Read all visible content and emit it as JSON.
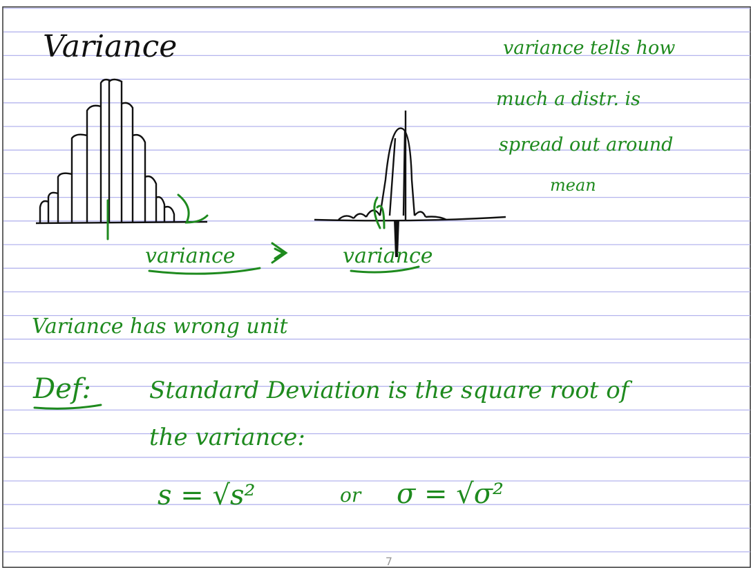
{
  "page": {
    "title": "Variance",
    "side_note": [
      "variance tells how",
      "much a distr. is",
      "spread out around",
      "mean"
    ],
    "sketch_labels": [
      "variance",
      "variance"
    ],
    "statement": "Variance has wrong unit",
    "definition": {
      "label": "Def:",
      "lines": [
        "Standard Deviation is the square root of",
        "the variance:"
      ],
      "formula": {
        "left": "s = √s²",
        "joiner": "or",
        "right": "σ = √σ²"
      }
    },
    "page_number": "7"
  }
}
